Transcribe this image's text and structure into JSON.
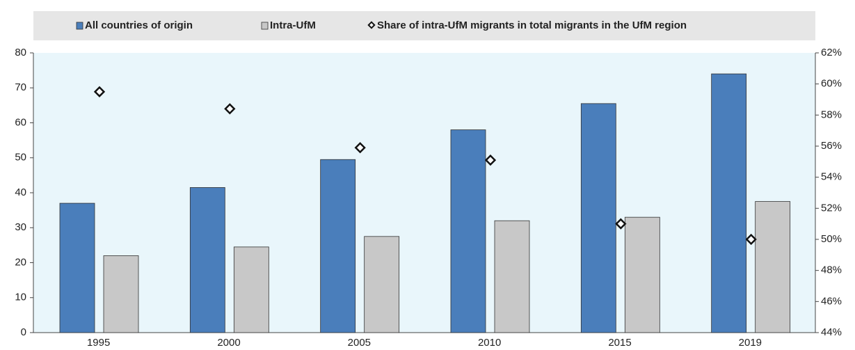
{
  "chart_data": {
    "type": "bar",
    "categories": [
      "1995",
      "2000",
      "2005",
      "2010",
      "2015",
      "2019"
    ],
    "series": [
      {
        "name": "All countries of origin",
        "color": "#4a7ebb",
        "values": [
          37,
          41.5,
          49.5,
          58,
          65.5,
          74
        ]
      },
      {
        "name": "Intra-UfM",
        "color": "#c8c8c8",
        "values": [
          22,
          24.5,
          27.5,
          32,
          33,
          37.5
        ]
      },
      {
        "name": "Share of intra-UfM migrants in total migrants in the UfM region",
        "type": "scatter",
        "axis": "y2",
        "color": "#ffffff",
        "values": [
          59.5,
          58.4,
          55.9,
          55.1,
          51,
          50
        ]
      }
    ],
    "ylim": [
      0,
      80
    ],
    "yticks": [
      0,
      10,
      20,
      30,
      40,
      50,
      60,
      70,
      80
    ],
    "y2lim": [
      44,
      62
    ],
    "y2ticks": [
      {
        "value": 44,
        "label": "44%"
      },
      {
        "value": 46,
        "label": "46%"
      },
      {
        "value": 48,
        "label": "48%"
      },
      {
        "value": 50,
        "label": "50%"
      },
      {
        "value": 52,
        "label": "52%"
      },
      {
        "value": 54,
        "label": "54%"
      },
      {
        "value": 56,
        "label": "56%"
      },
      {
        "value": 58,
        "label": "58%"
      },
      {
        "value": 60,
        "label": "60%"
      },
      {
        "value": 62,
        "label": "62%"
      }
    ],
    "legend": "top"
  }
}
